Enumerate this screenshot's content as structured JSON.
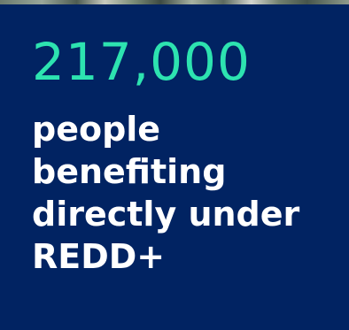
{
  "colors": {
    "background": "#012362",
    "accent": "#2de3b0",
    "text": "#ffffff"
  },
  "stat": {
    "value": "217,000",
    "caption": "people\nbenefiting\ndirectly under\nREDD+"
  }
}
